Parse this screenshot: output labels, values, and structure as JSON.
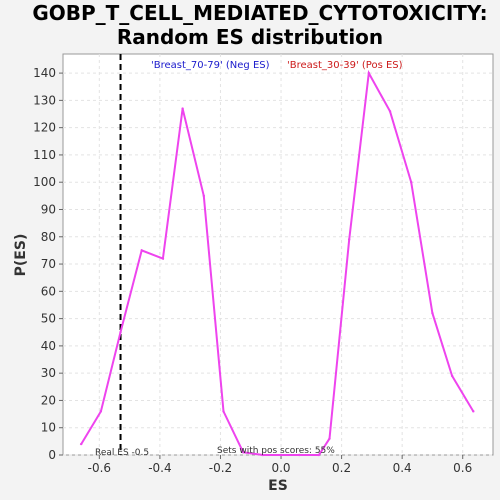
{
  "chart_data": {
    "type": "line",
    "title_line1": "GOBP_T_CELL_MEDIATED_CYTOTOXICITY:",
    "title_line2": "Random ES distribution",
    "xlabel": "ES",
    "ylabel": "P(ES)",
    "xlim": [
      -0.72,
      0.7
    ],
    "ylim": [
      0,
      147
    ],
    "x_ticks": [
      -0.6,
      -0.4,
      -0.2,
      0.0,
      0.2,
      0.4,
      0.6
    ],
    "x_tick_labels": [
      "-0.6",
      "-0.4",
      "-0.2",
      "0.0",
      "0.2",
      "0.4",
      "0.6"
    ],
    "y_ticks": [
      0,
      10,
      20,
      30,
      40,
      50,
      60,
      70,
      80,
      90,
      100,
      110,
      120,
      130,
      140
    ],
    "y_tick_labels": [
      "0",
      "10",
      "20",
      "30",
      "40",
      "50",
      "60",
      "70",
      "80",
      "90",
      "100",
      "110",
      "120",
      "130",
      "140"
    ],
    "grid": true,
    "series": [
      {
        "color": "#ee44ee",
        "x": [
          -0.66,
          -0.595,
          -0.53,
          -0.46,
          -0.39,
          -0.325,
          -0.255,
          -0.19,
          -0.125,
          -0.06,
          0.0,
          0.06,
          0.125,
          0.16,
          0.225,
          0.29,
          0.36,
          0.43,
          0.5,
          0.565,
          0.635
        ],
        "y": [
          4,
          16,
          45,
          75,
          72,
          127,
          95,
          16,
          1,
          0,
          0,
          0,
          0,
          6,
          79,
          140,
          126,
          100,
          52,
          29,
          16
        ]
      }
    ],
    "legend": [
      {
        "label": "'Breast_70-79' (Neg ES)",
        "color": "#1a1acc"
      },
      {
        "label": "'Breast_30-39' (Pos ES)",
        "color": "#cc1a1a"
      }
    ],
    "legend_placement": "top",
    "real_es": {
      "x": -0.53,
      "label": "Real ES -0.5"
    },
    "annotation": "Sets with pos scores: 55%"
  }
}
